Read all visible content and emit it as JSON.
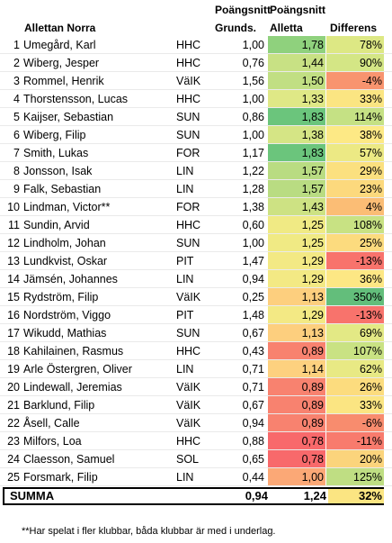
{
  "headers": {
    "name": "Allettan Norra",
    "grunds_top": "Poängsnitt",
    "grunds": "Grunds.",
    "alletta_top": "Poängsnitt",
    "alletta": "Alletta",
    "diff": "Differens"
  },
  "rows": [
    {
      "num": "1",
      "name": "Umegård, Karl",
      "club": "HHC",
      "grunds": "1,00",
      "alletta": "1,78",
      "diff": "78%",
      "alletta_color": "#8fd17d",
      "diff_color": "#dde884"
    },
    {
      "num": "2",
      "name": "Wiberg, Jesper",
      "club": "HHC",
      "grunds": "0,76",
      "alletta": "1,44",
      "diff": "90%",
      "alletta_color": "#c8e184",
      "diff_color": "#d4e685"
    },
    {
      "num": "3",
      "name": "Rommel, Henrik",
      "club": "VäIK",
      "grunds": "1,56",
      "alletta": "1,50",
      "diff": "-4%",
      "alletta_color": "#c1df83",
      "diff_color": "#f8946f"
    },
    {
      "num": "4",
      "name": "Thorstensson, Lucas",
      "club": "HHC",
      "grunds": "1,00",
      "alletta": "1,33",
      "diff": "33%",
      "alletta_color": "#dfe886",
      "diff_color": "#fbe582"
    },
    {
      "num": "5",
      "name": "Kaijser, Sebastian",
      "club": "SUN",
      "grunds": "0,86",
      "alletta": "1,83",
      "diff": "114%",
      "alletta_color": "#6bc57c",
      "diff_color": "#c5e184"
    },
    {
      "num": "6",
      "name": "Wiberg, Filip",
      "club": "SUN",
      "grunds": "1,00",
      "alletta": "1,38",
      "diff": "38%",
      "alletta_color": "#d5e585",
      "diff_color": "#fde985"
    },
    {
      "num": "7",
      "name": "Smith, Lukas",
      "club": "FOR",
      "grunds": "1,17",
      "alletta": "1,83",
      "diff": "57%",
      "alletta_color": "#6bc57c",
      "diff_color": "#ece984"
    },
    {
      "num": "8",
      "name": "Jonsson, Isak",
      "club": "LIN",
      "grunds": "1,22",
      "alletta": "1,57",
      "diff": "29%",
      "alletta_color": "#b9dc82",
      "diff_color": "#fbe07f"
    },
    {
      "num": "9",
      "name": "Falk, Sebastian",
      "club": "LIN",
      "grunds": "1,28",
      "alletta": "1,57",
      "diff": "23%",
      "alletta_color": "#b9dc82",
      "diff_color": "#fcd97d"
    },
    {
      "num": "10",
      "name": "Lindman, Victor**",
      "club": "FOR",
      "grunds": "1,38",
      "alletta": "1,43",
      "diff": "4%",
      "alletta_color": "#cde283",
      "diff_color": "#fbbd75"
    },
    {
      "num": "11",
      "name": "Sundin, Arvid",
      "club": "HHC",
      "grunds": "0,60",
      "alletta": "1,25",
      "diff": "108%",
      "alletta_color": "#f0ea84",
      "diff_color": "#c8e283"
    },
    {
      "num": "12",
      "name": "Lindholm, Johan",
      "club": "SUN",
      "grunds": "1,00",
      "alletta": "1,25",
      "diff": "25%",
      "alletta_color": "#f0ea84",
      "diff_color": "#fcdb7e"
    },
    {
      "num": "13",
      "name": "Lundkvist, Oskar",
      "club": "PIT",
      "grunds": "1,47",
      "alletta": "1,29",
      "diff": "-13%",
      "alletta_color": "#f3e984",
      "diff_color": "#f8736c"
    },
    {
      "num": "14",
      "name": "Jämsén, Johannes",
      "club": "LIN",
      "grunds": "0,94",
      "alletta": "1,29",
      "diff": "36%",
      "alletta_color": "#f3e984",
      "diff_color": "#fde784"
    },
    {
      "num": "15",
      "name": "Rydström, Filip",
      "club": "VäIK",
      "grunds": "0,25",
      "alletta": "1,13",
      "diff": "350%",
      "alletta_color": "#fdcf7e",
      "diff_color": "#63be7b"
    },
    {
      "num": "16",
      "name": "Nordström, Viggo",
      "club": "PIT",
      "grunds": "1,48",
      "alletta": "1,29",
      "diff": "-13%",
      "alletta_color": "#f3e984",
      "diff_color": "#f8736c"
    },
    {
      "num": "17",
      "name": "Wikudd, Mathias",
      "club": "SUN",
      "grunds": "0,67",
      "alletta": "1,13",
      "diff": "69%",
      "alletta_color": "#fdcf7e",
      "diff_color": "#e3e985"
    },
    {
      "num": "18",
      "name": "Kahilainen, Rasmus",
      "club": "HHC",
      "grunds": "0,43",
      "alletta": "0,89",
      "diff": "107%",
      "alletta_color": "#f8826f",
      "diff_color": "#c9e283"
    },
    {
      "num": "19",
      "name": "Arle Östergren, Oliver",
      "club": "LIN",
      "grunds": "0,71",
      "alletta": "1,14",
      "diff": "62%",
      "alletta_color": "#fdd17f",
      "diff_color": "#e8e984"
    },
    {
      "num": "20",
      "name": "Lindewall, Jeremias",
      "club": "VäIK",
      "grunds": "0,71",
      "alletta": "0,89",
      "diff": "26%",
      "alletta_color": "#f8826f",
      "diff_color": "#fcdc7e"
    },
    {
      "num": "21",
      "name": "Barklund, Filip",
      "club": "VäIK",
      "grunds": "0,67",
      "alletta": "0,89",
      "diff": "33%",
      "alletta_color": "#f8826f",
      "diff_color": "#fbe582"
    },
    {
      "num": "22",
      "name": "Åsell, Calle",
      "club": "VäIK",
      "grunds": "0,94",
      "alletta": "0,89",
      "diff": "-6%",
      "alletta_color": "#f8826f",
      "diff_color": "#f88c6e"
    },
    {
      "num": "23",
      "name": "Milfors, Loa",
      "club": "HHC",
      "grunds": "0,88",
      "alletta": "0,78",
      "diff": "-11%",
      "alletta_color": "#f8696b",
      "diff_color": "#f87b6d"
    },
    {
      "num": "24",
      "name": "Claesson, Samuel",
      "club": "SOL",
      "grunds": "0,65",
      "alletta": "0,78",
      "diff": "20%",
      "alletta_color": "#f8696b",
      "diff_color": "#fbd47c"
    },
    {
      "num": "25",
      "name": "Forsmark, Filip",
      "club": "LIN",
      "grunds": "0,44",
      "alletta": "1,00",
      "diff": "125%",
      "alletta_color": "#fba876",
      "diff_color": "#bfde83"
    }
  ],
  "summa": {
    "label": "SUMMA",
    "grunds": "0,94",
    "alletta": "1,24",
    "diff": "32%",
    "diff_color": "#fbe582"
  },
  "footnote": "**Har spelat i fler klubbar, båda klubbar är med i underlag."
}
